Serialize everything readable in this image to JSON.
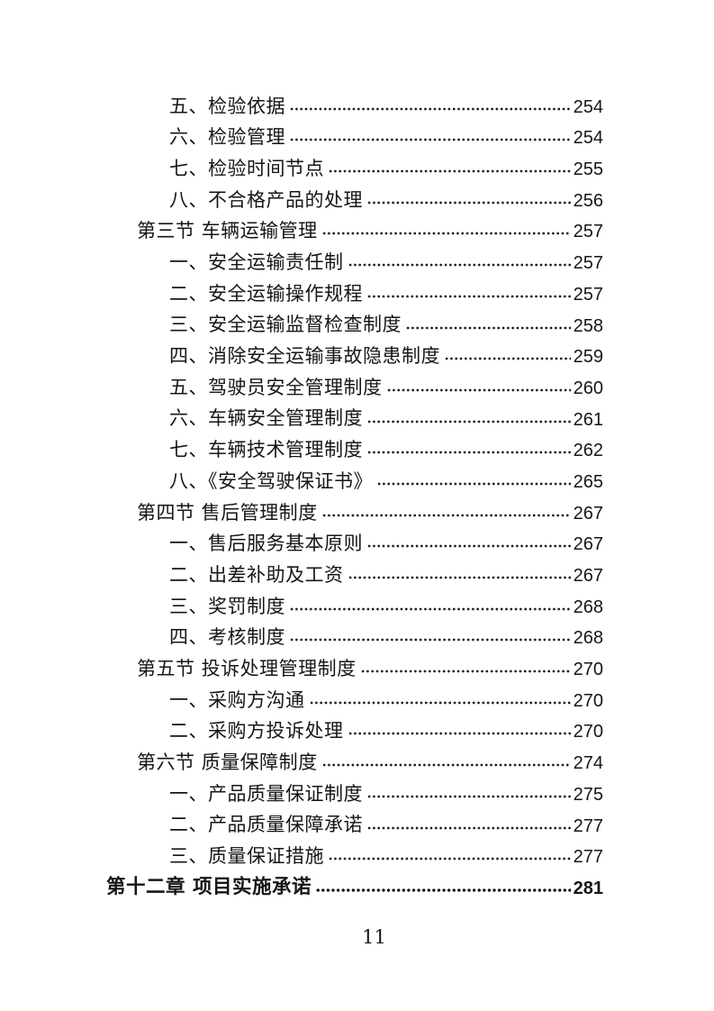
{
  "toc": {
    "entries": [
      {
        "level": "item",
        "title": "五、检验依据",
        "page": "254"
      },
      {
        "level": "item",
        "title": "六、检验管理",
        "page": "254"
      },
      {
        "level": "item",
        "title": "七、检验时间节点",
        "page": "255"
      },
      {
        "level": "item",
        "title": "八、不合格产品的处理",
        "page": "256"
      },
      {
        "level": "section",
        "title": "第三节 车辆运输管理",
        "page": "257"
      },
      {
        "level": "item",
        "title": "一、安全运输责任制",
        "page": "257"
      },
      {
        "level": "item",
        "title": "二、安全运输操作规程",
        "page": "257"
      },
      {
        "level": "item",
        "title": "三、安全运输监督检查制度",
        "page": "258"
      },
      {
        "level": "item",
        "title": "四、消除安全运输事故隐患制度",
        "page": "259"
      },
      {
        "level": "item",
        "title": "五、驾驶员安全管理制度",
        "page": "260"
      },
      {
        "level": "item",
        "title": "六、车辆安全管理制度",
        "page": "261"
      },
      {
        "level": "item",
        "title": "七、车辆技术管理制度",
        "page": "262"
      },
      {
        "level": "item",
        "title": "八、《安全驾驶保证书》",
        "page": "265"
      },
      {
        "level": "section",
        "title": "第四节 售后管理制度",
        "page": "267"
      },
      {
        "level": "item",
        "title": "一、售后服务基本原则",
        "page": "267"
      },
      {
        "level": "item",
        "title": "二、出差补助及工资",
        "page": "267"
      },
      {
        "level": "item",
        "title": "三、奖罚制度",
        "page": "268"
      },
      {
        "level": "item",
        "title": "四、考核制度",
        "page": "268"
      },
      {
        "level": "section",
        "title": "第五节 投诉处理管理制度",
        "page": "270"
      },
      {
        "level": "item",
        "title": "一、采购方沟通",
        "page": "270"
      },
      {
        "level": "item",
        "title": "二、采购方投诉处理",
        "page": "270"
      },
      {
        "level": "section",
        "title": "第六节 质量保障制度",
        "page": "274"
      },
      {
        "level": "item",
        "title": "一、产品质量保证制度",
        "page": "275"
      },
      {
        "level": "item",
        "title": "二、产品质量保障承诺",
        "page": "277"
      },
      {
        "level": "item",
        "title": "三、质量保证措施",
        "page": "277"
      },
      {
        "level": "chapter",
        "title": "第十二章 项目实施承诺",
        "page": "281"
      }
    ]
  },
  "footer": {
    "page_number": "11"
  }
}
